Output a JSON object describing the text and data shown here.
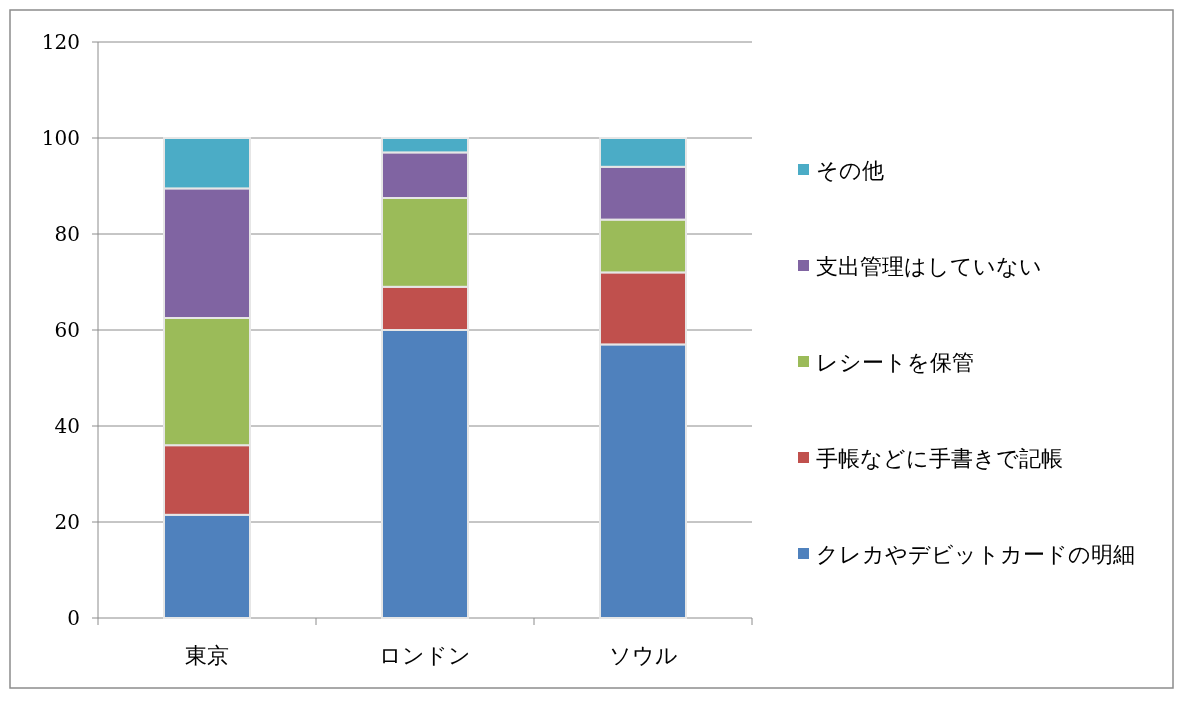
{
  "chart_data": {
    "type": "bar",
    "stacked": true,
    "categories": [
      "東京",
      "ロンドン",
      "ソウル"
    ],
    "series": [
      {
        "name": "クレカやデビットカードの明細",
        "color": "#4f81bd",
        "values": [
          21.5,
          60,
          57
        ]
      },
      {
        "name": "手帳などに手書きで記帳",
        "color": "#c0504d",
        "values": [
          14.5,
          9,
          15
        ]
      },
      {
        "name": "レシートを保管",
        "color": "#9bbb59",
        "values": [
          26.5,
          18.5,
          11
        ]
      },
      {
        "name": "支出管理はしていない",
        "color": "#8064a2",
        "values": [
          27,
          9.5,
          11
        ]
      },
      {
        "name": "その他",
        "color": "#4bacc6",
        "values": [
          10.5,
          3,
          6
        ]
      }
    ],
    "ylim": [
      0,
      120
    ],
    "yticks": [
      0,
      20,
      40,
      60,
      80,
      100,
      120
    ],
    "grid": "y",
    "legend": "right"
  }
}
